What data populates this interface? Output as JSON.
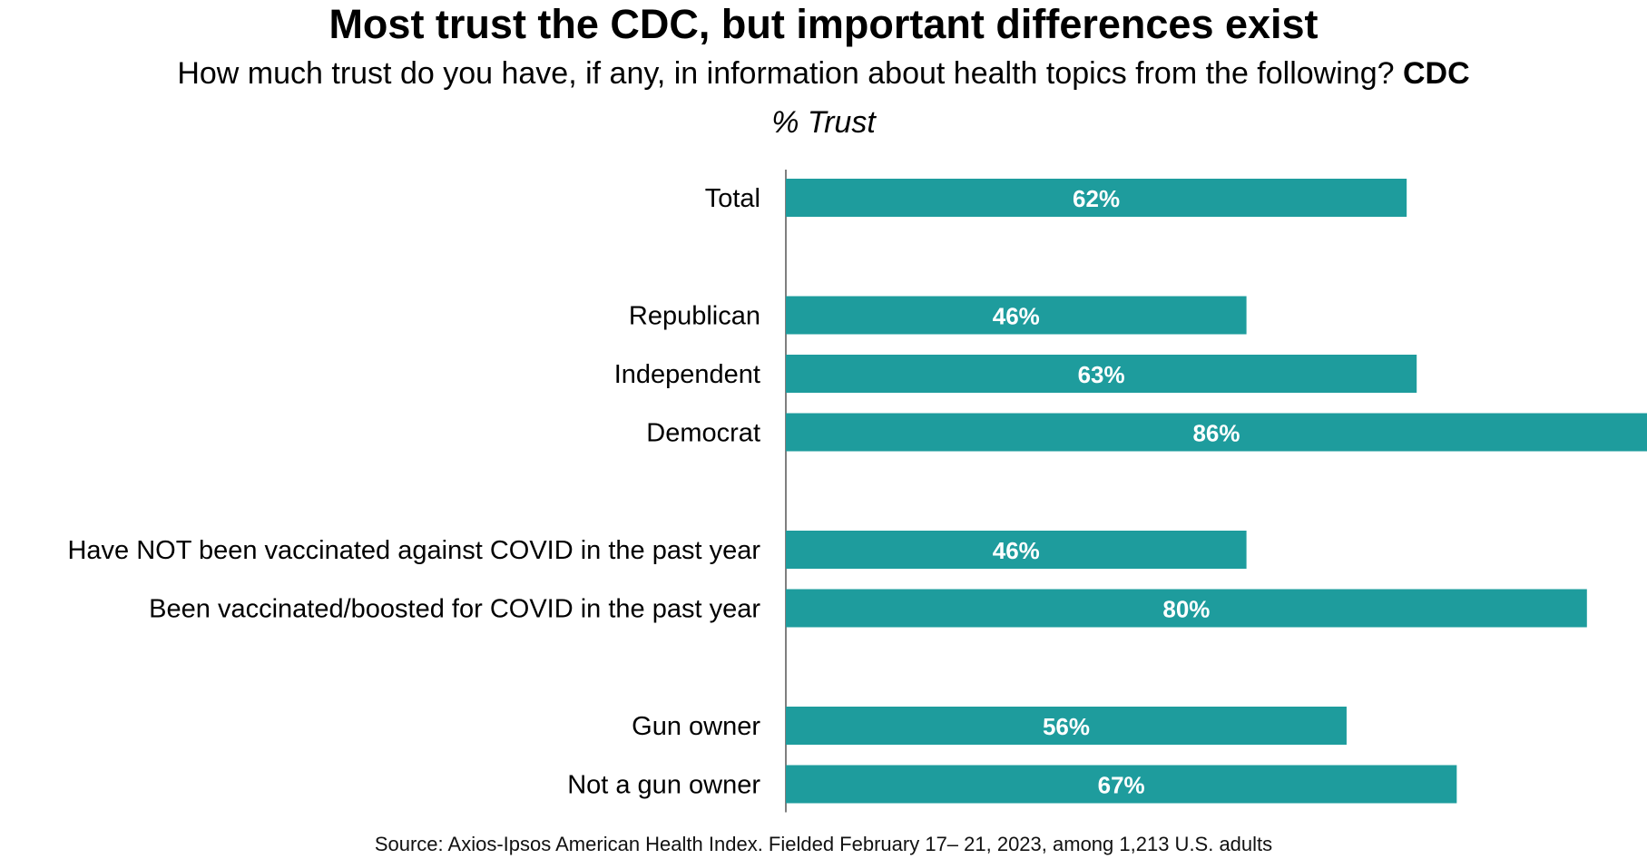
{
  "header": {
    "title": "Most trust the CDC, but important differences exist",
    "question": "How much trust do you have, if any, in information about health topics from the following?",
    "question_emphasis": "CDC",
    "unit": "% Trust"
  },
  "footer": {
    "source": "Source: Axios-Ipsos American Health Index. Fielded February 17– 21, 2023, among 1,213 U.S. adults"
  },
  "chart_data": {
    "type": "bar",
    "orientation": "horizontal",
    "title": "Most trust the CDC, but important differences exist",
    "subtitle": "How much trust do you have, if any, in information about health topics from the following? CDC",
    "xlabel": "% Trust",
    "ylabel": "",
    "xlim": [
      0,
      86
    ],
    "grid": false,
    "legend": "none",
    "bar_color": "#1e9c9d",
    "categories": [
      "Total",
      "Republican",
      "Independent",
      "Democrat",
      "Have NOT been vaccinated against COVID in the past year",
      "Been vaccinated/boosted for COVID in the past year",
      "Gun owner",
      "Not a gun owner"
    ],
    "groups": [
      0,
      1,
      1,
      1,
      2,
      2,
      3,
      3
    ],
    "values": [
      62,
      46,
      63,
      86,
      46,
      80,
      56,
      67
    ],
    "value_labels": [
      "62%",
      "46%",
      "63%",
      "86%",
      "46%",
      "80%",
      "56%",
      "67%"
    ]
  }
}
